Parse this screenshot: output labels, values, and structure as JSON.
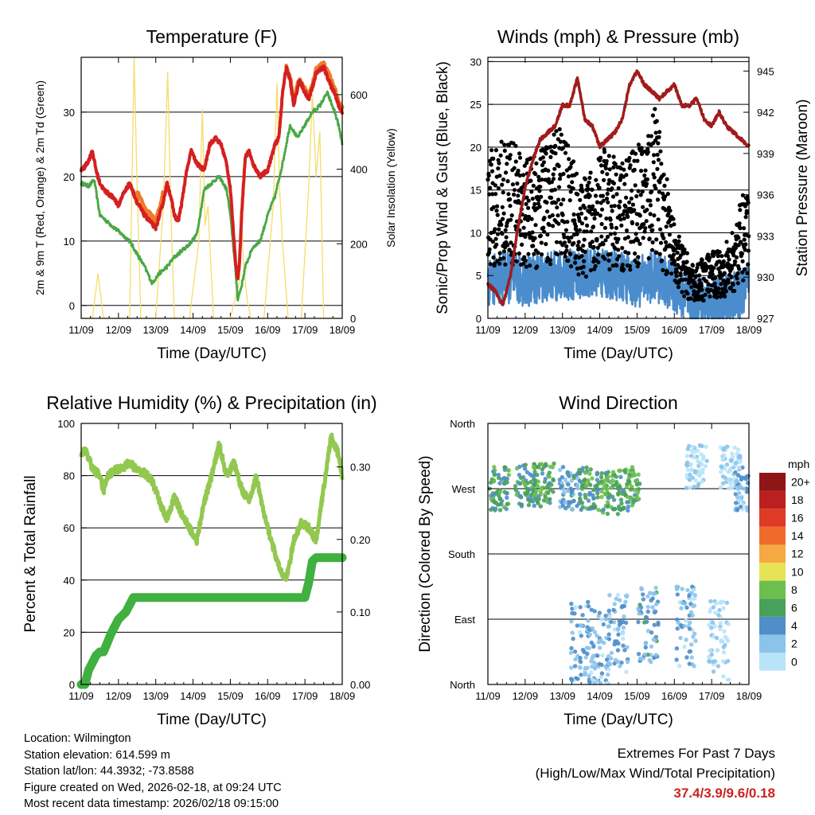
{
  "chart_data": [
    {
      "type": "line",
      "title": "Temperature (F)",
      "xlabel": "Time (Day/UTC)",
      "ylabel": "2m & 9m T (Red, Orange) & 2m Td (Green)",
      "ylabel_right": "Solar Insolation (Yellow)",
      "x_ticks": [
        "11/09",
        "12/09",
        "13/09",
        "14/09",
        "15/09",
        "16/09",
        "17/09",
        "18/09"
      ],
      "ylim": [
        -2,
        38.5
      ],
      "yticks": [
        0,
        10,
        20,
        30
      ],
      "ylim_right": [
        0,
        700
      ],
      "yticks_right": [
        0,
        200,
        400,
        600
      ],
      "grid_y": [
        0,
        10,
        20,
        30
      ],
      "series": [
        {
          "name": "2m T",
          "color": "#d42020",
          "x": [
            0,
            0.1,
            0.2,
            0.3,
            0.4,
            0.5,
            0.6,
            0.7,
            0.8,
            0.9,
            1.0,
            1.1,
            1.3,
            1.5,
            1.7,
            1.85,
            2.0,
            2.1,
            2.2,
            2.3,
            2.4,
            2.5,
            2.6,
            2.7,
            2.8,
            2.95,
            3.1,
            3.3,
            3.45,
            3.6,
            3.75,
            3.9,
            4.0,
            4.1,
            4.15,
            4.2,
            4.25,
            4.3,
            4.4,
            4.5,
            4.6,
            4.8,
            5.0,
            5.1,
            5.2,
            5.3,
            5.4,
            5.5,
            5.6,
            5.7,
            5.85,
            6.0,
            6.1,
            6.2,
            6.3,
            6.5,
            6.7,
            6.8,
            6.9,
            7.0
          ],
          "y": [
            21,
            21.5,
            22.5,
            24,
            21,
            19,
            18,
            17.5,
            17,
            16.5,
            15.5,
            17,
            19,
            16,
            14,
            13,
            12,
            14,
            16,
            19,
            17,
            14,
            13,
            16,
            20,
            24,
            22,
            21,
            25,
            26,
            25,
            22,
            18,
            10,
            6,
            4,
            7,
            14,
            23,
            24,
            22,
            20,
            21,
            23,
            25,
            26,
            33,
            37,
            35,
            31,
            35,
            33,
            32,
            34,
            36,
            37,
            34,
            33,
            31,
            30
          ]
        },
        {
          "name": "9m T",
          "color": "#f07a2a",
          "x": [
            1.5,
            1.7,
            1.85,
            2.0,
            2.1,
            2.2,
            5.5,
            5.6,
            5.7,
            5.85,
            6.0,
            6.1,
            6.2,
            6.3,
            6.5,
            6.7,
            6.8,
            6.9,
            7.0
          ],
          "y": [
            17.5,
            15,
            14,
            13,
            15,
            17.5,
            37,
            35.5,
            32,
            35,
            33.5,
            32.5,
            34,
            36.5,
            37.5,
            35,
            33.5,
            31.5,
            30.5
          ]
        },
        {
          "name": "2m Td",
          "color": "#4aa844",
          "x": [
            0,
            0.2,
            0.35,
            0.5,
            0.7,
            0.9,
            1.1,
            1.3,
            1.5,
            1.7,
            1.9,
            2.1,
            2.3,
            2.5,
            2.7,
            2.9,
            3.1,
            3.3,
            3.5,
            3.7,
            3.9,
            4.0,
            4.1,
            4.2,
            4.3,
            4.4,
            4.6,
            4.8,
            5.0,
            5.2,
            5.4,
            5.6,
            5.8,
            6.0,
            6.2,
            6.4,
            6.6,
            6.8,
            6.9,
            7.0
          ],
          "y": [
            19,
            18.5,
            19.5,
            14,
            13,
            12,
            11,
            10,
            8,
            6,
            3.5,
            5,
            6,
            7.5,
            8.5,
            9.5,
            11,
            18,
            19,
            20,
            18,
            14,
            8,
            1,
            3,
            6,
            9,
            10,
            14,
            17,
            22,
            28,
            26,
            28,
            30,
            31,
            33,
            30,
            28,
            25
          ]
        }
      ],
      "solar_series": {
        "name": "Solar Insolation",
        "color": "#f4dd6a",
        "x": [
          0,
          0.3,
          0.45,
          0.6,
          0.9,
          1.3,
          1.42,
          1.5,
          1.6,
          1.9,
          2.0,
          2.2,
          2.32,
          2.4,
          2.5,
          2.9,
          3.15,
          3.25,
          3.32,
          3.4,
          3.55,
          4.0,
          4.25,
          4.3,
          4.35,
          4.45,
          4.55,
          4.9,
          5.15,
          5.25,
          5.32,
          5.4,
          5.55,
          5.9,
          6.1,
          6.2,
          6.3,
          6.4,
          6.5,
          6.9,
          7.0
        ],
        "y": [
          0,
          0,
          120,
          0,
          0,
          0,
          700,
          350,
          0,
          0,
          0,
          300,
          660,
          300,
          0,
          0,
          200,
          560,
          250,
          300,
          0,
          0,
          100,
          300,
          150,
          50,
          0,
          0,
          300,
          630,
          350,
          200,
          0,
          0,
          350,
          600,
          380,
          500,
          0,
          0,
          0
        ]
      }
    },
    {
      "type": "scatter",
      "title": "Winds (mph) & Pressure (mb)",
      "xlabel": "Time (Day/UTC)",
      "ylabel": "Sonic/Prop Wind & Gust (Blue, Black)",
      "ylabel_right": "Station Pressure (Maroon)",
      "x_ticks": [
        "11/09",
        "12/09",
        "13/09",
        "14/09",
        "15/09",
        "16/09",
        "17/09",
        "18/09"
      ],
      "ylim": [
        0,
        30.5
      ],
      "yticks": [
        0,
        5,
        10,
        15,
        20,
        25,
        30
      ],
      "ylim_right": [
        927,
        946
      ],
      "yticks_right": [
        927,
        930,
        933,
        936,
        939,
        942,
        945
      ],
      "grid_y": [
        5,
        10,
        15,
        20,
        25,
        30
      ],
      "wind_mean_levels": {
        "name": "Sonic/Prop Wind",
        "color": "#4a8ccc",
        "x": [
          0,
          0.5,
          1.0,
          1.5,
          2.0,
          2.5,
          3.0,
          3.5,
          4.0,
          4.5,
          5.0,
          5.5,
          6.0,
          6.5,
          7.0
        ],
        "y": [
          4.5,
          4.8,
          4.3,
          4.8,
          5.0,
          5.2,
          5.3,
          5.0,
          4.2,
          5.0,
          3.5,
          2.0,
          1.8,
          2.2,
          3.5
        ]
      },
      "gust_levels": {
        "name": "Gust",
        "color": "#000000",
        "x": [
          0,
          0.5,
          1.0,
          1.5,
          2.0,
          2.5,
          3.0,
          3.5,
          4.0,
          4.5,
          5.0,
          5.5,
          6.0,
          6.5,
          7.0
        ],
        "y": [
          13,
          14,
          12,
          13,
          15,
          10,
          13,
          12,
          13,
          16,
          7,
          4,
          5,
          6,
          11
        ]
      },
      "pressure_series": {
        "name": "Station Pressure",
        "color": "#a01c1c",
        "x": [
          0,
          0.2,
          0.4,
          0.6,
          0.8,
          1.0,
          1.2,
          1.4,
          1.6,
          1.8,
          2.0,
          2.2,
          2.4,
          2.6,
          2.8,
          3.0,
          3.2,
          3.4,
          3.6,
          3.8,
          4.0,
          4.2,
          4.4,
          4.6,
          4.8,
          5.0,
          5.2,
          5.4,
          5.6,
          5.8,
          6.0,
          6.2,
          6.4,
          6.6,
          6.8,
          7.0
        ],
        "y": [
          929.5,
          929,
          928,
          930,
          933.5,
          936.5,
          938.5,
          940,
          940.5,
          941,
          942.5,
          942.5,
          944.5,
          941.5,
          941,
          939.5,
          940,
          940.5,
          941.5,
          944,
          945,
          944,
          943.5,
          943,
          943.5,
          944,
          942.5,
          942.5,
          943,
          941.5,
          941,
          942,
          941,
          940.5,
          940,
          939.5
        ]
      }
    },
    {
      "type": "line",
      "title": "Relative Humidity (%) & Precipitation (in)",
      "xlabel": "Time (Day/UTC)",
      "ylabel": "Percent & Total Rainfall",
      "x_ticks": [
        "11/09",
        "12/09",
        "13/09",
        "14/09",
        "15/09",
        "16/09",
        "17/09",
        "18/09"
      ],
      "ylim": [
        0,
        100
      ],
      "yticks": [
        0,
        20,
        40,
        60,
        80,
        100
      ],
      "ylim_right": [
        0,
        0.36
      ],
      "yticks_right": [
        "0.00",
        "0.10",
        "0.20",
        "0.30"
      ],
      "grid_y": [
        20,
        40,
        60,
        80
      ],
      "series": [
        {
          "name": "Relative Humidity",
          "color": "#92c850",
          "x": [
            0,
            0.1,
            0.3,
            0.5,
            0.6,
            0.7,
            0.9,
            1.1,
            1.3,
            1.5,
            1.7,
            1.9,
            2.1,
            2.3,
            2.5,
            2.7,
            2.9,
            3.1,
            3.3,
            3.5,
            3.7,
            3.9,
            4.1,
            4.3,
            4.5,
            4.7,
            4.9,
            5.1,
            5.3,
            5.5,
            5.7,
            5.9,
            6.1,
            6.3,
            6.5,
            6.7,
            6.9,
            7.0
          ],
          "y": [
            88,
            90,
            83,
            80,
            74,
            80,
            82,
            83,
            85,
            82,
            81,
            78,
            70,
            63,
            72,
            65,
            60,
            55,
            70,
            80,
            92,
            80,
            85,
            75,
            70,
            80,
            65,
            55,
            45,
            40,
            55,
            62,
            60,
            55,
            75,
            95,
            88,
            80
          ]
        },
        {
          "name": "Total Rainfall",
          "color": "#40b040",
          "x": [
            0,
            0.1,
            0.2,
            0.3,
            0.4,
            0.5,
            0.6,
            0.8,
            1.0,
            1.2,
            1.3,
            1.4,
            1.5,
            2.0,
            3.0,
            4.0,
            5.0,
            6.0,
            6.1,
            6.2,
            6.3,
            6.5,
            7.0
          ],
          "y": [
            0.0,
            0.0,
            0.02,
            0.03,
            0.04,
            0.045,
            0.045,
            0.07,
            0.09,
            0.1,
            0.11,
            0.12,
            0.12,
            0.12,
            0.12,
            0.12,
            0.12,
            0.12,
            0.14,
            0.17,
            0.175,
            0.175,
            0.175
          ]
        }
      ]
    },
    {
      "type": "scatter",
      "title": "Wind Direction",
      "xlabel": "Time (Day/UTC)",
      "ylabel": "Direction (Colored By Speed)",
      "x_ticks": [
        "11/09",
        "12/09",
        "13/09",
        "14/09",
        "15/09",
        "16/09",
        "17/09",
        "18/09"
      ],
      "ylim": [
        0,
        360
      ],
      "y_ticks": [
        "North",
        "East",
        "South",
        "West",
        "North"
      ],
      "grid_y": [
        90,
        180,
        270
      ],
      "colorbar": {
        "title": "mph",
        "labels": [
          "0",
          "2",
          "4",
          "6",
          "8",
          "10",
          "12",
          "14",
          "16",
          "18",
          "20+"
        ],
        "colors": [
          "#b9e3f8",
          "#8cc3eb",
          "#4f8ec9",
          "#48a05a",
          "#6cbf4c",
          "#e6e356",
          "#f6a843",
          "#ef6b2b",
          "#de3a25",
          "#bb1f1f",
          "#8e1616"
        ]
      },
      "direction_clusters": [
        {
          "x": 0.3,
          "dir": 270,
          "speed": 6
        },
        {
          "x": 1.0,
          "dir": 275,
          "speed": 6
        },
        {
          "x": 1.5,
          "dir": 275,
          "speed": 7
        },
        {
          "x": 2.2,
          "dir": 270,
          "speed": 4
        },
        {
          "x": 2.7,
          "dir": 270,
          "speed": 6
        },
        {
          "x": 3.3,
          "dir": 265,
          "speed": 7
        },
        {
          "x": 3.8,
          "dir": 270,
          "speed": 7
        },
        {
          "x": 2.5,
          "dir": 60,
          "speed": 3
        },
        {
          "x": 3.0,
          "dir": 50,
          "speed": 3
        },
        {
          "x": 3.5,
          "dir": 70,
          "speed": 3
        },
        {
          "x": 4.3,
          "dir": 85,
          "speed": 4
        },
        {
          "x": 5.3,
          "dir": 80,
          "speed": 3
        },
        {
          "x": 6.2,
          "dir": 60,
          "speed": 1
        },
        {
          "x": 6.5,
          "dir": 300,
          "speed": 1
        },
        {
          "x": 5.6,
          "dir": 300,
          "speed": 1
        },
        {
          "x": 6.9,
          "dir": 270,
          "speed": 3
        }
      ]
    }
  ],
  "info": {
    "location": "Location: Wilmington",
    "elevation": "Station elevation: 614.599 m",
    "latlon": "Station lat/lon: 44.3932; -73.8588",
    "created": "Figure created on Wed, 2026-02-18, at 09:24 UTC",
    "recent": "Most recent data timestamp: 2026/02/18 09:15:00"
  },
  "extremes": {
    "line1": "Extremes For Past 7 Days",
    "line2": "(High/Low/Max Wind/Total Precipitation)",
    "values": "37.4/3.9/9.6/0.18"
  }
}
